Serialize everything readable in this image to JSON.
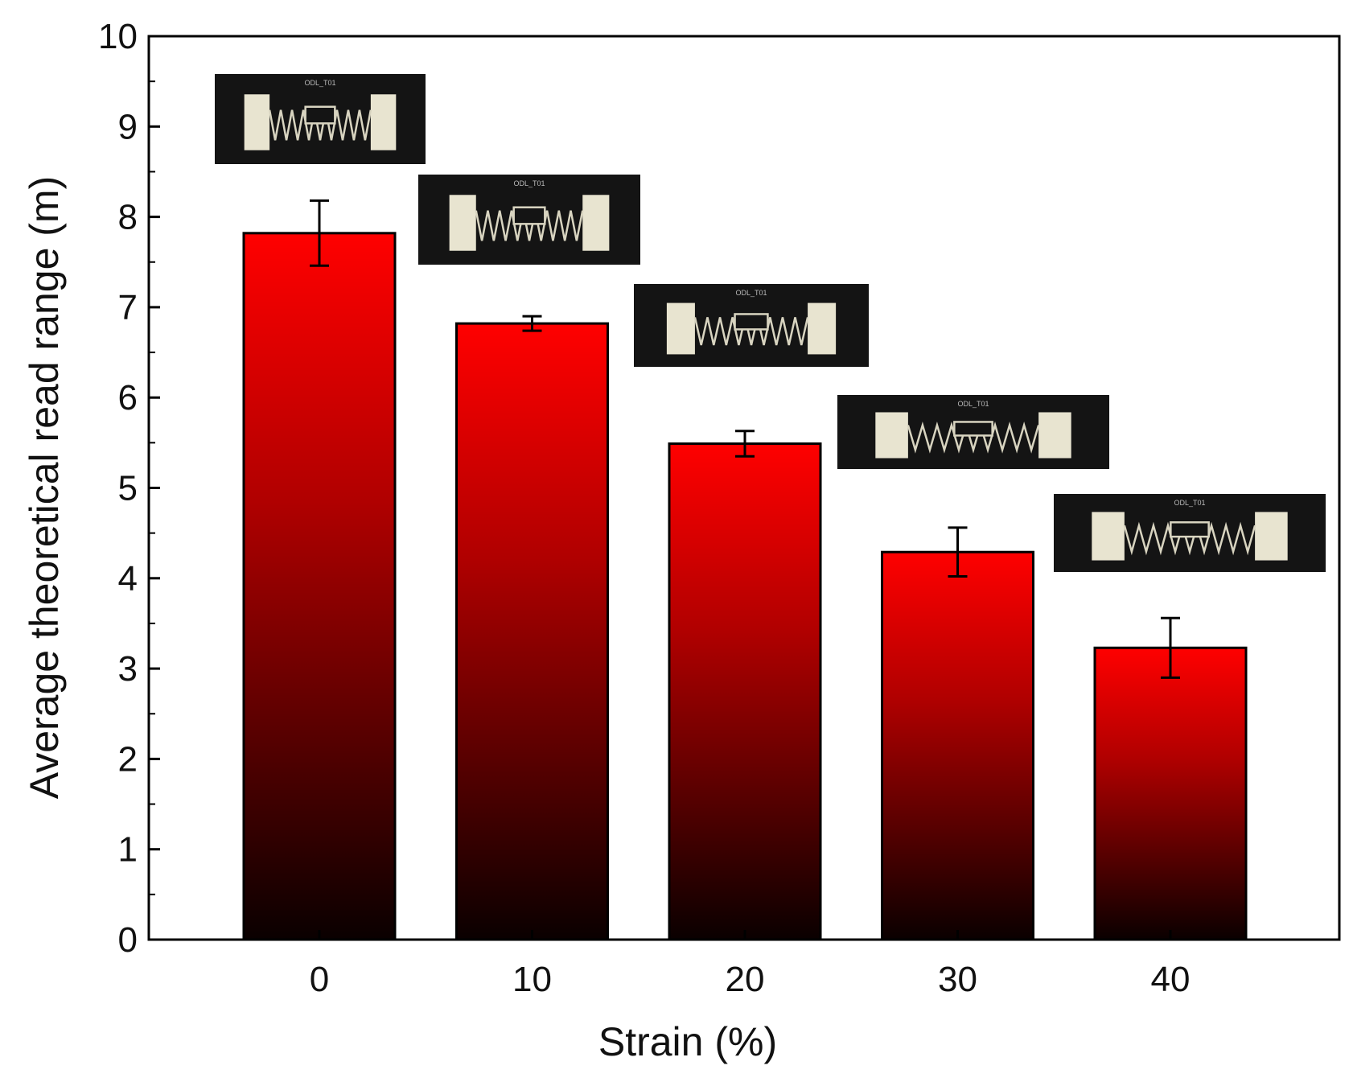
{
  "chart_data": {
    "type": "bar",
    "xlabel": "Strain (%)",
    "ylabel": "Average theoretical read range (m)",
    "categories": [
      "0",
      "10",
      "20",
      "30",
      "40"
    ],
    "values": [
      7.82,
      6.82,
      5.49,
      4.29,
      3.23
    ],
    "errors": [
      0.36,
      0.08,
      0.14,
      0.27,
      0.33
    ],
    "ylim": [
      0,
      10
    ],
    "yticks": [
      "0",
      "1",
      "2",
      "3",
      "4",
      "5",
      "6",
      "7",
      "8",
      "9",
      "10"
    ],
    "grid": false,
    "legend": "none",
    "bar_gradient": {
      "top": "#ff0000",
      "bottom": "#0a0000"
    },
    "insets": [
      {
        "category": "0",
        "label": "RFID tag photograph at 0% strain",
        "caption": "ODL_T01"
      },
      {
        "category": "10",
        "label": "RFID tag photograph at 10% strain",
        "caption": "ODL_T01"
      },
      {
        "category": "20",
        "label": "RFID tag photograph at 20% strain",
        "caption": "ODL_T01"
      },
      {
        "category": "30",
        "label": "RFID tag photograph at 30% strain",
        "caption": "ODL_T01"
      },
      {
        "category": "40",
        "label": "RFID tag photograph at 40% strain",
        "caption": "ODL_T01"
      }
    ]
  }
}
